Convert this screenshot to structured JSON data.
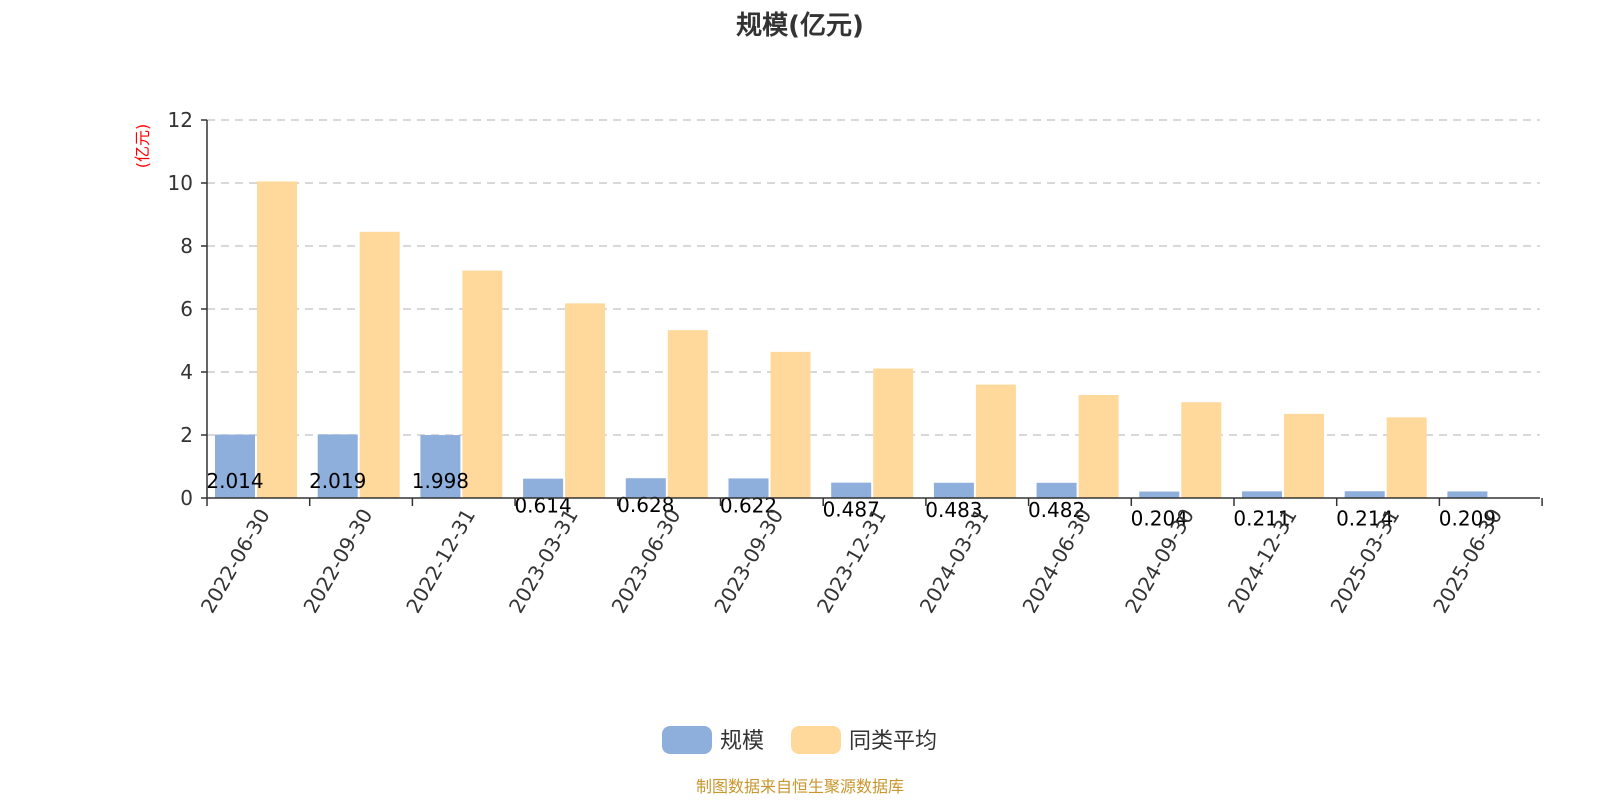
{
  "chart_data": {
    "type": "bar",
    "title": "规模(亿元)",
    "y_unit_label": "(亿元)",
    "categories": [
      "2022-06-30",
      "2022-09-30",
      "2022-12-31",
      "2023-03-31",
      "2023-06-30",
      "2023-09-30",
      "2023-12-31",
      "2024-03-31",
      "2024-06-30",
      "2024-09-30",
      "2024-12-31",
      "2025-03-31",
      "2025-06-30"
    ],
    "series": [
      {
        "name": "规模",
        "color": "#8eaedb",
        "values": [
          2.014,
          2.019,
          1.998,
          0.614,
          0.628,
          0.622,
          0.487,
          0.483,
          0.482,
          0.204,
          0.211,
          0.214,
          0.209
        ],
        "labels": [
          "2.014",
          "2.019",
          "1.998",
          "0.614",
          "0.628",
          "0.622",
          "0.487",
          "0.483",
          "0.482",
          "0.204",
          "0.211",
          "0.214",
          "0.209"
        ]
      },
      {
        "name": "同类平均",
        "color": "#ffd99b",
        "values": [
          10.05,
          8.45,
          7.22,
          6.18,
          5.33,
          4.64,
          4.11,
          3.6,
          3.27,
          3.04,
          2.67,
          2.56,
          null
        ]
      }
    ],
    "ylim": [
      0,
      12
    ],
    "yticks": [
      0,
      2,
      4,
      6,
      8,
      10,
      12
    ],
    "grid": true,
    "legend_position": "bottom-center"
  },
  "footer": {
    "source": "制图数据来自恒生聚源数据库"
  }
}
